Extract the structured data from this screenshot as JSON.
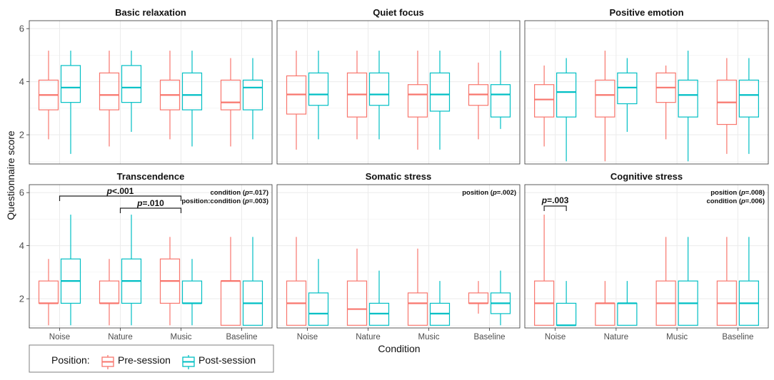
{
  "chart_data": {
    "type": "boxplot",
    "ylabel": "Questionnaire score",
    "xlabel": "Condition",
    "ylim": [
      0.9,
      6.3
    ],
    "yticks": [
      2,
      4,
      6
    ],
    "categories": [
      "Noise",
      "Nature",
      "Music",
      "Baseline"
    ],
    "legend": {
      "title": "Position:",
      "entries": [
        {
          "name": "Pre-session",
          "color": "#F8766D"
        },
        {
          "name": "Post-session",
          "color": "#00BFC4"
        }
      ],
      "placement": "bottom-left"
    },
    "panels": [
      {
        "title": "Basic relaxation",
        "annotations": [],
        "significance": [],
        "boxes": {
          "pre": [
            [
              1.83,
              2.94,
              3.5,
              4.06,
              5.17
            ],
            [
              1.56,
              2.94,
              3.5,
              4.33,
              5.17
            ],
            [
              1.83,
              2.94,
              3.5,
              4.06,
              5.17
            ],
            [
              1.56,
              2.94,
              3.22,
              4.06,
              4.89
            ]
          ],
          "post": [
            [
              1.28,
              3.22,
              3.78,
              4.61,
              5.17
            ],
            [
              2.11,
              3.22,
              3.78,
              4.61,
              5.17
            ],
            [
              1.56,
              2.94,
              3.5,
              4.33,
              5.17
            ],
            [
              1.83,
              2.94,
              3.78,
              4.06,
              4.89
            ]
          ]
        }
      },
      {
        "title": "Quiet focus",
        "annotations": [],
        "significance": [],
        "boxes": {
          "pre": [
            [
              1.44,
              2.78,
              3.52,
              4.22,
              5.17
            ],
            [
              1.83,
              2.67,
              3.52,
              4.33,
              5.17
            ],
            [
              1.44,
              2.67,
              3.52,
              3.89,
              5.17
            ],
            [
              1.83,
              3.11,
              3.52,
              3.89,
              4.72
            ]
          ],
          "post": [
            [
              1.83,
              3.11,
              3.52,
              4.33,
              5.17
            ],
            [
              1.83,
              3.11,
              3.52,
              4.33,
              5.17
            ],
            [
              1.44,
              2.89,
              3.52,
              4.33,
              5.17
            ],
            [
              2.22,
              2.67,
              3.52,
              3.89,
              5.17
            ]
          ]
        }
      },
      {
        "title": "Positive emotion",
        "annotations": [],
        "significance": [],
        "boxes": {
          "pre": [
            [
              1.56,
              2.67,
              3.33,
              3.89,
              4.61
            ],
            [
              1.0,
              2.67,
              3.5,
              4.06,
              5.17
            ],
            [
              1.83,
              3.22,
              3.78,
              4.33,
              4.61
            ],
            [
              1.28,
              2.39,
              3.22,
              4.06,
              4.89
            ]
          ],
          "post": [
            [
              1.0,
              2.67,
              3.61,
              4.33,
              4.89
            ],
            [
              2.11,
              3.17,
              3.78,
              4.33,
              4.89
            ],
            [
              1.0,
              2.67,
              3.5,
              4.06,
              5.17
            ],
            [
              1.28,
              2.67,
              3.5,
              4.06,
              4.89
            ]
          ]
        }
      },
      {
        "title": "Transcendence",
        "annotations": [
          "condition (p=.017)",
          "position:condition (p=.003)"
        ],
        "significance": [
          {
            "label": "p<.001",
            "from": "Noise",
            "to": "Music"
          },
          {
            "label": "p=.010",
            "from": "Nature",
            "to": "Music"
          }
        ],
        "boxes": {
          "pre": [
            [
              1.0,
              1.83,
              1.83,
              2.67,
              3.5
            ],
            [
              1.0,
              1.83,
              1.83,
              2.67,
              3.5
            ],
            [
              1.0,
              1.83,
              2.67,
              3.5,
              4.33
            ],
            [
              1.0,
              1.0,
              2.67,
              2.67,
              4.33
            ]
          ],
          "post": [
            [
              1.0,
              1.83,
              2.67,
              3.5,
              5.17
            ],
            [
              1.0,
              1.83,
              2.67,
              3.5,
              5.17
            ],
            [
              1.0,
              1.83,
              1.83,
              2.67,
              3.5
            ],
            [
              1.0,
              1.0,
              1.83,
              2.67,
              4.33
            ]
          ]
        }
      },
      {
        "title": "Somatic stress",
        "annotations": [
          "position (p=.002)"
        ],
        "significance": [],
        "boxes": {
          "pre": [
            [
              1.0,
              1.0,
              1.83,
              2.67,
              4.33
            ],
            [
              1.0,
              1.0,
              1.61,
              2.67,
              3.89
            ],
            [
              1.0,
              1.0,
              1.83,
              2.22,
              3.89
            ],
            [
              1.44,
              1.83,
              1.83,
              2.22,
              2.67
            ]
          ],
          "post": [
            [
              1.0,
              1.0,
              1.44,
              2.22,
              3.5
            ],
            [
              1.0,
              1.0,
              1.44,
              1.83,
              3.06
            ],
            [
              1.0,
              1.0,
              1.44,
              1.83,
              2.67
            ],
            [
              1.0,
              1.44,
              1.83,
              2.22,
              3.06
            ]
          ]
        }
      },
      {
        "title": "Cognitive stress",
        "annotations": [
          "position (p=.008)",
          "condition (p=.006)"
        ],
        "significance": [
          {
            "label": "p=.003",
            "from": "Noise",
            "to": "Noise"
          }
        ],
        "boxes": {
          "pre": [
            [
              1.0,
              1.0,
              1.83,
              2.67,
              5.17
            ],
            [
              1.0,
              1.0,
              1.83,
              1.83,
              2.67
            ],
            [
              1.0,
              1.0,
              1.83,
              2.67,
              4.33
            ],
            [
              1.0,
              1.0,
              1.83,
              2.67,
              4.33
            ]
          ],
          "post": [
            [
              1.0,
              1.0,
              1.0,
              1.83,
              2.67
            ],
            [
              1.0,
              1.0,
              1.83,
              1.83,
              2.67
            ],
            [
              1.0,
              1.0,
              1.83,
              2.67,
              4.33
            ],
            [
              1.0,
              1.0,
              1.83,
              2.67,
              4.33
            ]
          ]
        }
      }
    ]
  }
}
